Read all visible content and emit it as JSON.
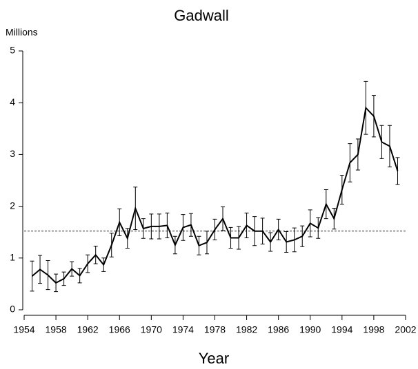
{
  "chart_data": {
    "type": "line",
    "title": "Gadwall",
    "y_label": "Millions",
    "x_label": "Year",
    "x": [
      1955,
      1956,
      1957,
      1958,
      1959,
      1960,
      1961,
      1962,
      1963,
      1964,
      1965,
      1966,
      1967,
      1968,
      1969,
      1970,
      1971,
      1972,
      1973,
      1974,
      1975,
      1976,
      1977,
      1978,
      1979,
      1980,
      1981,
      1982,
      1983,
      1984,
      1985,
      1986,
      1987,
      1988,
      1989,
      1990,
      1991,
      1992,
      1993,
      1994,
      1995,
      1996,
      1997,
      1998,
      1999,
      2000,
      2001
    ],
    "series": [
      {
        "color": "#000000",
        "values": [
          0.65,
          0.78,
          0.67,
          0.52,
          0.6,
          0.79,
          0.66,
          0.89,
          1.06,
          0.87,
          1.25,
          1.69,
          1.38,
          1.96,
          1.57,
          1.61,
          1.61,
          1.63,
          1.25,
          1.59,
          1.64,
          1.24,
          1.3,
          1.55,
          1.76,
          1.39,
          1.39,
          1.63,
          1.52,
          1.52,
          1.31,
          1.55,
          1.31,
          1.35,
          1.42,
          1.67,
          1.58,
          2.04,
          1.76,
          2.32,
          2.84,
          3.0,
          3.9,
          3.74,
          3.24,
          3.16,
          2.68
        ],
        "errors": [
          0.29,
          0.27,
          0.28,
          0.17,
          0.13,
          0.14,
          0.14,
          0.17,
          0.17,
          0.13,
          0.23,
          0.26,
          0.19,
          0.41,
          0.19,
          0.24,
          0.24,
          0.24,
          0.17,
          0.25,
          0.22,
          0.18,
          0.22,
          0.2,
          0.23,
          0.2,
          0.22,
          0.24,
          0.28,
          0.25,
          0.18,
          0.2,
          0.2,
          0.23,
          0.2,
          0.26,
          0.2,
          0.28,
          0.2,
          0.28,
          0.37,
          0.3,
          0.51,
          0.4,
          0.32,
          0.4,
          0.26
        ]
      }
    ],
    "reference_line": 1.52,
    "xlim": [
      1954,
      2002
    ],
    "xticks": [
      1954,
      1958,
      1962,
      1966,
      1970,
      1974,
      1978,
      1982,
      1986,
      1990,
      1994,
      1998,
      2002
    ],
    "ylim": [
      0,
      5
    ],
    "yticks": [
      0,
      1,
      2,
      3,
      4,
      5
    ]
  }
}
